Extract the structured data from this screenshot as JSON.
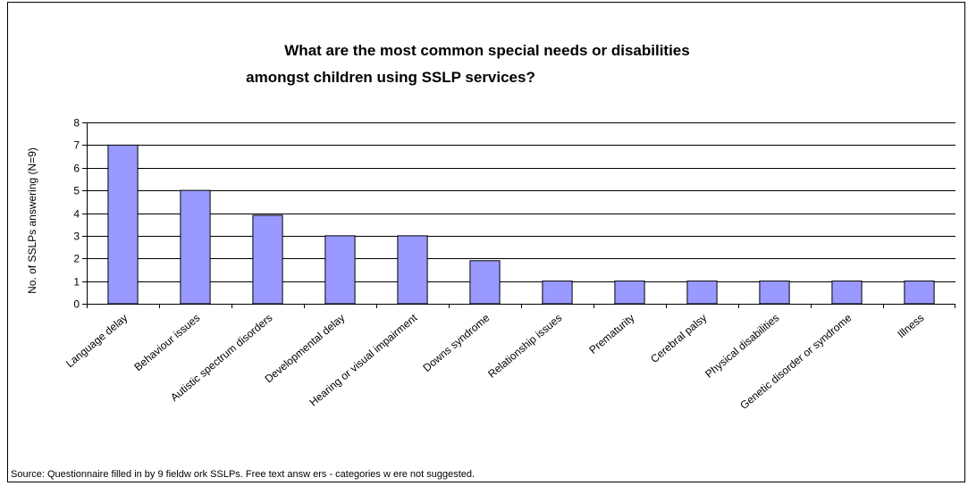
{
  "chart_data": {
    "type": "bar",
    "title_lines": [
      "What are the most common special needs or disabilities",
      "amongst children using SSLP services?"
    ],
    "xlabel": "",
    "ylabel": "No. of SSLPs answering (N=9)",
    "ylim": [
      0,
      8
    ],
    "yticks": [
      0,
      1,
      2,
      3,
      4,
      5,
      6,
      7,
      8
    ],
    "grid": true,
    "legend": "none",
    "categories": [
      "Language delay",
      "Behaviour issues",
      "Autistic spectrum disorders",
      "Developmental delay",
      "Hearing or visual impairment",
      "Downs syndrome",
      "Relationship issues",
      "Prematurity",
      "Cerebral palsy",
      "Physical disabilities",
      "Genetic disorder or syndrome",
      "Illness"
    ],
    "values": [
      7,
      5,
      3.9,
      3,
      3,
      1.9,
      1,
      1,
      1,
      1,
      1,
      1
    ],
    "colors": {
      "bar_fill": "#9999FF",
      "bar_stroke": "#000000",
      "grid": "#000000"
    }
  },
  "source": "Source: Questionnaire filled in by 9 fieldw ork SSLPs. Free text answ ers - categories w ere not suggested."
}
